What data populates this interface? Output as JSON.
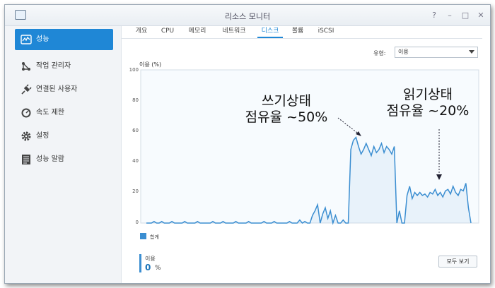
{
  "window": {
    "title": "리소스 모니터",
    "controls": [
      "?",
      "–",
      "□",
      "✕"
    ]
  },
  "sidebar": {
    "items": [
      {
        "label": "성능",
        "icon": "performance-icon",
        "active": true
      },
      {
        "label": "작업 관리자",
        "icon": "task-manager-icon"
      },
      {
        "label": "연결된 사용자",
        "icon": "plug-icon"
      },
      {
        "label": "속도 제한",
        "icon": "speedometer-icon"
      },
      {
        "label": "설정",
        "icon": "gear-icon"
      },
      {
        "label": "성능 알람",
        "icon": "list-icon"
      }
    ]
  },
  "tabs": [
    {
      "label": "개요"
    },
    {
      "label": "CPU"
    },
    {
      "label": "메모리"
    },
    {
      "label": "네트워크"
    },
    {
      "label": "디스크",
      "active": true
    },
    {
      "label": "볼륨"
    },
    {
      "label": "iSCSI"
    }
  ],
  "type_filter": {
    "label": "유형:",
    "value": "이용"
  },
  "footer": {
    "legend": "합계",
    "usage_label": "이용",
    "usage_value": "0",
    "usage_unit": "%",
    "show_all": "모두 보기"
  },
  "annotations": {
    "write_line1": "쓰기상태",
    "write_line2": "점유율 ~50%",
    "read_line1": "읽기상태",
    "read_line2": "점유율 ~20%"
  },
  "chart_data": {
    "type": "area",
    "ylabel": "이용 (%)",
    "ylim": [
      0,
      100
    ],
    "yticks": [
      "100",
      "80",
      "60",
      "40",
      "20",
      "0"
    ],
    "grid": false,
    "legend_placement": "bottom-left",
    "series": [
      {
        "name": "합계",
        "color": "#3b8ed1",
        "values": [
          0,
          0,
          0,
          1,
          0,
          0,
          1,
          0,
          0,
          0,
          1,
          0,
          0,
          0,
          0,
          1,
          0,
          0,
          0,
          0,
          1,
          0,
          0,
          0,
          0,
          0,
          1,
          0,
          0,
          0,
          1,
          0,
          0,
          0,
          0,
          1,
          0,
          0,
          0,
          0,
          1,
          0,
          0,
          0,
          0,
          0,
          1,
          0,
          0,
          0,
          1,
          0,
          0,
          0,
          0,
          0,
          1,
          0,
          0,
          0,
          2,
          0,
          1,
          0,
          0,
          5,
          8,
          12,
          0,
          6,
          10,
          3,
          8,
          0,
          5,
          0,
          0,
          2,
          0,
          0,
          48,
          54,
          56,
          50,
          45,
          48,
          52,
          48,
          44,
          50,
          46,
          48,
          52,
          46,
          50,
          48,
          45,
          50,
          0,
          8,
          0,
          0,
          18,
          24,
          16,
          20,
          18,
          20,
          18,
          19,
          17,
          20,
          19,
          22,
          18,
          20,
          17,
          21,
          22,
          19,
          24,
          20,
          18,
          22,
          21,
          26,
          10,
          0
        ]
      }
    ]
  }
}
